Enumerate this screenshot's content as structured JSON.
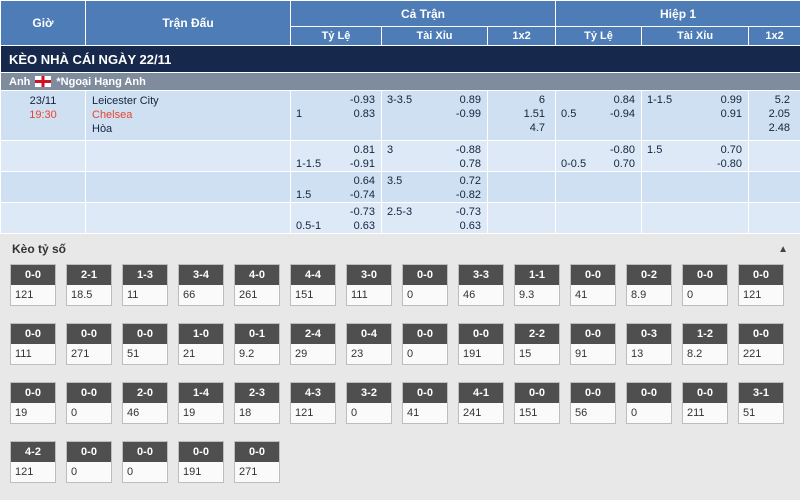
{
  "table_header": {
    "time": "Giờ",
    "match": "Trận Đấu",
    "full_time": "Cả Trận",
    "first_half": "Hiệp 1",
    "handicap": "Tỷ Lệ",
    "over_under": "Tài Xỉu",
    "one_x_two": "1x2"
  },
  "date_banner": "KÈO NHÀ CÁI NGÀY 22/11",
  "league": {
    "country": "Anh",
    "flag": "england-flag",
    "name": "*Ngoại Hạng Anh"
  },
  "match": {
    "date": "23/11",
    "time": "19:30",
    "home": "Leicester City",
    "away": "Chelsea",
    "draw": "Hòa"
  },
  "odds_rows": [
    {
      "ft_hdp": {
        "line": "1",
        "odds": [
          "-0.93",
          "0.83"
        ]
      },
      "ft_ou": {
        "line": "3-3.5",
        "odds": [
          "0.89",
          "-0.99"
        ]
      },
      "ft_1x2": [
        "6",
        "1.51",
        "4.7"
      ],
      "h1_hdp": {
        "line": "0.5",
        "odds": [
          "0.84",
          "-0.94"
        ]
      },
      "h1_ou": {
        "line": "1-1.5",
        "odds": [
          "0.99",
          "0.91"
        ]
      },
      "h1_1x2": [
        "5.2",
        "2.05",
        "2.48"
      ]
    },
    {
      "ft_hdp": {
        "line": "1-1.5",
        "odds": [
          "0.81",
          "-0.91"
        ]
      },
      "ft_ou": {
        "line": "3",
        "odds": [
          "-0.88",
          "0.78"
        ]
      },
      "ft_1x2": [],
      "h1_hdp": {
        "line": "0-0.5",
        "odds": [
          "-0.80",
          "0.70"
        ]
      },
      "h1_ou": {
        "line": "1.5",
        "odds": [
          "0.70",
          "-0.80"
        ]
      },
      "h1_1x2": []
    },
    {
      "ft_hdp": {
        "line": "1.5",
        "odds": [
          "0.64",
          "-0.74"
        ]
      },
      "ft_ou": {
        "line": "3.5",
        "odds": [
          "0.72",
          "-0.82"
        ]
      },
      "ft_1x2": [],
      "h1_hdp": {
        "line": "",
        "odds": []
      },
      "h1_ou": {
        "line": "",
        "odds": []
      },
      "h1_1x2": []
    },
    {
      "ft_hdp": {
        "line": "0.5-1",
        "odds": [
          "-0.73",
          "0.63"
        ]
      },
      "ft_ou": {
        "line": "2.5-3",
        "odds": [
          "-0.73",
          "0.63"
        ]
      },
      "ft_1x2": [],
      "h1_hdp": {
        "line": "",
        "odds": []
      },
      "h1_ou": {
        "line": "",
        "odds": []
      },
      "h1_1x2": []
    }
  ],
  "score_section": {
    "title": "Kèo tỷ số",
    "collapse_icon": "▲",
    "rows": [
      [
        {
          "score": "0-0",
          "odds": "121"
        },
        {
          "score": "2-1",
          "odds": "18.5"
        },
        {
          "score": "1-3",
          "odds": "11"
        },
        {
          "score": "3-4",
          "odds": "66"
        },
        {
          "score": "4-0",
          "odds": "261"
        },
        {
          "score": "4-4",
          "odds": "151"
        },
        {
          "score": "3-0",
          "odds": "111"
        },
        {
          "score": "0-0",
          "odds": "0"
        },
        {
          "score": "3-3",
          "odds": "46"
        },
        {
          "score": "1-1",
          "odds": "9.3"
        },
        {
          "score": "0-0",
          "odds": "41"
        },
        {
          "score": "0-2",
          "odds": "8.9"
        },
        {
          "score": "0-0",
          "odds": "0"
        },
        {
          "score": "0-0",
          "odds": "121"
        }
      ],
      [
        {
          "score": "0-0",
          "odds": "111"
        },
        {
          "score": "0-0",
          "odds": "271"
        },
        {
          "score": "0-0",
          "odds": "51"
        },
        {
          "score": "1-0",
          "odds": "21"
        },
        {
          "score": "0-1",
          "odds": "9.2"
        },
        {
          "score": "2-4",
          "odds": "29"
        },
        {
          "score": "0-4",
          "odds": "23"
        },
        {
          "score": "0-0",
          "odds": "0"
        },
        {
          "score": "0-0",
          "odds": "191"
        },
        {
          "score": "2-2",
          "odds": "15"
        },
        {
          "score": "0-0",
          "odds": "91"
        },
        {
          "score": "0-3",
          "odds": "13"
        },
        {
          "score": "1-2",
          "odds": "8.2"
        },
        {
          "score": "0-0",
          "odds": "221"
        }
      ],
      [
        {
          "score": "0-0",
          "odds": "19"
        },
        {
          "score": "0-0",
          "odds": "0"
        },
        {
          "score": "2-0",
          "odds": "46"
        },
        {
          "score": "1-4",
          "odds": "19"
        },
        {
          "score": "2-3",
          "odds": "18"
        },
        {
          "score": "4-3",
          "odds": "121"
        },
        {
          "score": "3-2",
          "odds": "0"
        },
        {
          "score": "0-0",
          "odds": "41"
        },
        {
          "score": "4-1",
          "odds": "241"
        },
        {
          "score": "0-0",
          "odds": "151"
        },
        {
          "score": "0-0",
          "odds": "56"
        },
        {
          "score": "0-0",
          "odds": "0"
        },
        {
          "score": "0-0",
          "odds": "211"
        },
        {
          "score": "3-1",
          "odds": "51"
        }
      ],
      [
        {
          "score": "4-2",
          "odds": "121"
        },
        {
          "score": "0-0",
          "odds": "0"
        },
        {
          "score": "0-0",
          "odds": "0"
        },
        {
          "score": "0-0",
          "odds": "191"
        },
        {
          "score": "0-0",
          "odds": "271"
        }
      ]
    ]
  },
  "colors": {
    "header_blue": "#4d7cb7",
    "banner_navy": "#16294c",
    "league_gray": "#7f8c9e",
    "row_blue_a": "#cfe0f2",
    "row_blue_b": "#dde9f6",
    "accent_red": "#e8432f",
    "score_box_header": "#4f4f4f"
  }
}
